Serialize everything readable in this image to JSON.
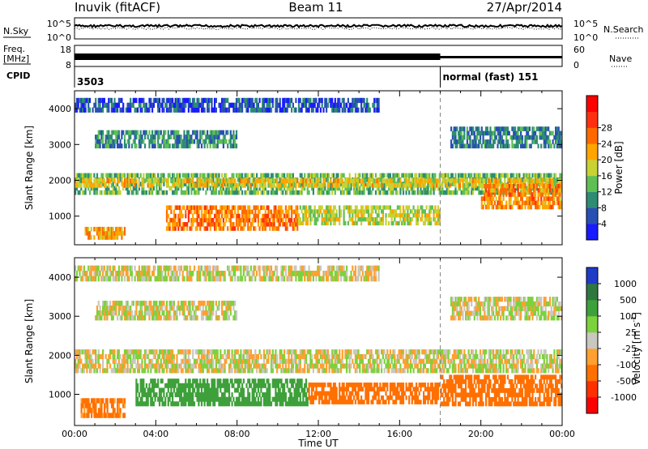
{
  "header": {
    "station": "Inuvik (fitACF)",
    "beam": "Beam 11",
    "date": "27/Apr/2014"
  },
  "nsky_panel": {
    "left_label": "N.Sky",
    "right_label": "N.Search",
    "left_ticks": [
      "10^5",
      "10^0"
    ],
    "right_ticks": [
      "10^5",
      "10^0"
    ]
  },
  "freq_panel": {
    "left_label_1": "Freq.",
    "left_label_2": "[MHz]",
    "right_label": "Nave",
    "left_ticks": [
      "18",
      "8"
    ],
    "right_ticks": [
      "60",
      "0"
    ]
  },
  "cpid_panel": {
    "label": "CPID",
    "segments": [
      {
        "start_hour": 0,
        "text": "3503"
      },
      {
        "start_hour": 18,
        "text": "normal (fast) 151"
      }
    ]
  },
  "chart_data": [
    {
      "type": "heatmap",
      "name": "power",
      "xlabel": "",
      "ylabel": "Slant Range [km]",
      "xlim": [
        0,
        24
      ],
      "ylim": [
        200,
        4500
      ],
      "y_ticks": [
        1000,
        2000,
        3000,
        4000
      ],
      "colorbar": {
        "label": "Power [dB]",
        "ticks": [
          "4",
          "8",
          "12",
          "16",
          "20",
          "24",
          "28"
        ],
        "colors": [
          "#1a1aff",
          "#2850b4",
          "#2e8c73",
          "#5fbf55",
          "#c8d232",
          "#ffa500",
          "#ff6a00",
          "#ff3010",
          "#ff0000"
        ]
      },
      "bands": [
        {
          "start": 0.0,
          "end": 24.0,
          "low": 1600,
          "high": 2200,
          "value": 14
        },
        {
          "start": 0.0,
          "end": 24.0,
          "low": 1800,
          "high": 2050,
          "value": 20
        },
        {
          "start": 4.5,
          "end": 11.0,
          "low": 600,
          "high": 1300,
          "value": 25
        },
        {
          "start": 11.0,
          "end": 18.0,
          "low": 750,
          "high": 1300,
          "value": 17
        },
        {
          "start": 0.5,
          "end": 2.5,
          "low": 350,
          "high": 700,
          "value": 22
        },
        {
          "start": 20.0,
          "end": 24.0,
          "low": 1200,
          "high": 1900,
          "value": 24
        },
        {
          "start": 1.0,
          "end": 8.0,
          "low": 2900,
          "high": 3400,
          "value": 10
        },
        {
          "start": 18.5,
          "end": 24.0,
          "low": 2900,
          "high": 3500,
          "value": 9
        },
        {
          "start": 0.0,
          "end": 15.0,
          "low": 3900,
          "high": 4300,
          "value": 6
        }
      ]
    },
    {
      "type": "heatmap",
      "name": "velocity",
      "xlabel": "Time UT",
      "ylabel": "Slant Range [km]",
      "xlim": [
        0,
        24
      ],
      "ylim": [
        200,
        4500
      ],
      "x_ticks": [
        "00:00",
        "04:00",
        "08:00",
        "12:00",
        "16:00",
        "20:00",
        "00:00"
      ],
      "y_ticks": [
        1000,
        2000,
        3000,
        4000
      ],
      "colorbar": {
        "label": "Velocity [m s^-1]",
        "ticks": [
          "1000",
          "500",
          "100",
          "25",
          "-25",
          "-100",
          "-500",
          "-1000"
        ],
        "colors": [
          "#1e3cc8",
          "#2e7840",
          "#3ea03a",
          "#7cd23c",
          "#c8c8c0",
          "#ffa030",
          "#ff7000",
          "#ff3000",
          "#ff0000"
        ]
      },
      "bands": [
        {
          "start": 0.0,
          "end": 24.0,
          "low": 1550,
          "high": 2150,
          "value": 0
        },
        {
          "start": 3.0,
          "end": 11.5,
          "low": 700,
          "high": 1400,
          "value": 300
        },
        {
          "start": 11.5,
          "end": 18.0,
          "low": 750,
          "high": 1300,
          "value": -300
        },
        {
          "start": 0.3,
          "end": 2.5,
          "low": 400,
          "high": 900,
          "value": -150
        },
        {
          "start": 18.0,
          "end": 24.0,
          "low": 700,
          "high": 1500,
          "value": -300
        },
        {
          "start": 1.0,
          "end": 8.0,
          "low": 2900,
          "high": 3400,
          "value": 0
        },
        {
          "start": 18.5,
          "end": 24.0,
          "low": 2900,
          "high": 3500,
          "value": 0
        },
        {
          "start": 0.0,
          "end": 15.0,
          "low": 3900,
          "high": 4300,
          "value": 0
        }
      ]
    }
  ],
  "cpid_change_hour": 18
}
